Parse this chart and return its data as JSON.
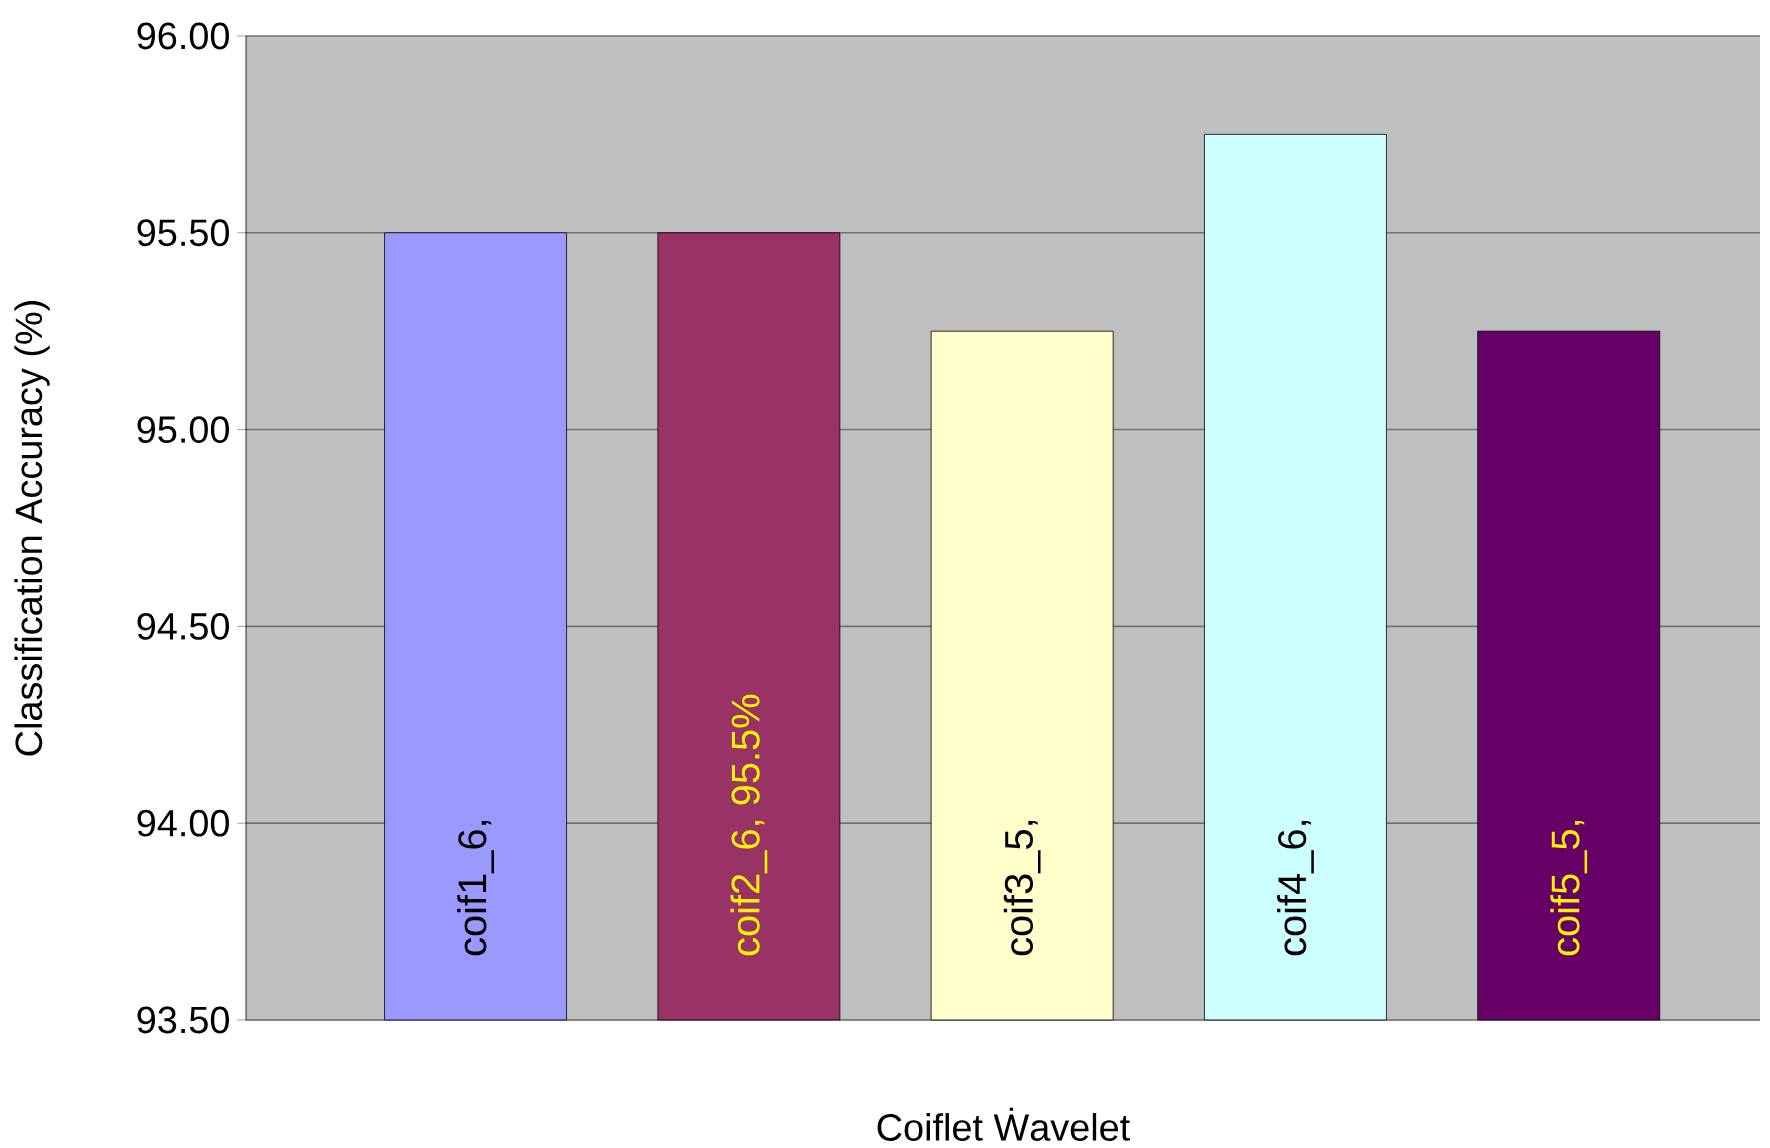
{
  "chart_data": {
    "type": "bar",
    "xlabel": "Coiflet Ẇavelet",
    "ylabel": "Classification Accuracy (%)",
    "categories": [
      null,
      null,
      null,
      null,
      null
    ],
    "values": [
      95.5,
      95.5,
      95.25,
      95.75,
      95.25
    ],
    "colors": [
      "#9999ff",
      "#993366",
      "#ffffcc",
      "#ccffff",
      "#660066"
    ],
    "value_labels": [
      "coif1_6,",
      "coif2_6, 95.5%",
      "coif3_5,",
      "coif4_6,",
      "coif5_5,"
    ],
    "ylim": [
      93.5,
      96
    ],
    "yticks": [
      {
        "value": 93.5,
        "label": "93.50"
      },
      {
        "value": 94,
        "label": "94.00"
      },
      {
        "value": 94.5,
        "label": "94.50"
      },
      {
        "value": 95,
        "label": "95.00"
      },
      {
        "value": 95.5,
        "label": "95.50"
      },
      {
        "value": 96,
        "label": "96.00"
      }
    ],
    "grid": "y"
  }
}
